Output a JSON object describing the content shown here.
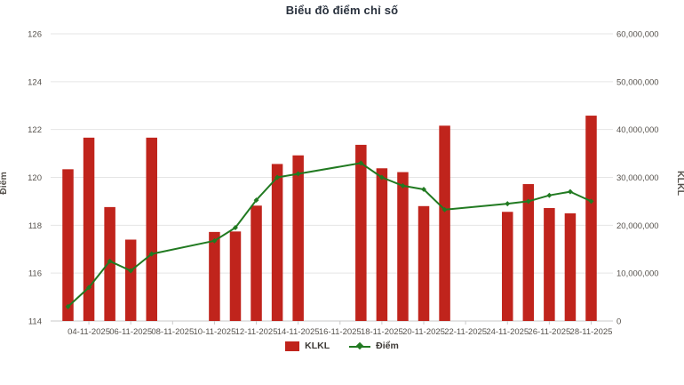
{
  "title": "Biểu đồ điểm chỉ số",
  "colors": {
    "bar": "#c0241c",
    "line": "#217a21",
    "grid": "#e5e5e5",
    "axis_line": "#c9c9c9",
    "tick_text": "#56524d",
    "title_text": "#28303c"
  },
  "left_axis": {
    "label": "Điểm",
    "min": 114,
    "max": 126,
    "step": 2,
    "tick_labels": [
      "114",
      "116",
      "118",
      "120",
      "122",
      "124",
      "126"
    ]
  },
  "right_axis": {
    "label": "KLKL",
    "min": 0,
    "max": 60000000,
    "step": 10000000,
    "tick_labels": [
      "0",
      "10,000,000",
      "20,000,000",
      "30,000,000",
      "40,000,000",
      "50,000,000",
      "60,000,000"
    ]
  },
  "legend": {
    "bar_label": "KLKL",
    "line_label": "Điểm"
  },
  "chart_data": {
    "type": "combo",
    "bar_series_name": "KLKL",
    "line_series_name": "Điểm",
    "x_axis_note": "daily trading sessions Nov 2025, weekend slots empty",
    "x_tick_labels": [
      {
        "label": "04-11-2025",
        "slot": 1
      },
      {
        "label": "06-11-2025",
        "slot": 3
      },
      {
        "label": "08-11-2025",
        "slot": 5
      },
      {
        "label": "10-11-2025",
        "slot": 7
      },
      {
        "label": "12-11-2025",
        "slot": 9
      },
      {
        "label": "14-11-2025",
        "slot": 11
      },
      {
        "label": "16-11-2025",
        "slot": 13
      },
      {
        "label": "18-11-2025",
        "slot": 15
      },
      {
        "label": "20-11-2025",
        "slot": 17
      },
      {
        "label": "22-11-2025",
        "slot": 19
      },
      {
        "label": "24-11-2025",
        "slot": 21
      },
      {
        "label": "26-11-2025",
        "slot": 23
      },
      {
        "label": "28-11-2025",
        "slot": 25
      }
    ],
    "points": [
      {
        "date": "03-11-2025",
        "slot": 0,
        "klkl": 31700000,
        "diem": 114.6
      },
      {
        "date": "04-11-2025",
        "slot": 1,
        "klkl": 38300000,
        "diem": 115.4
      },
      {
        "date": "05-11-2025",
        "slot": 2,
        "klkl": 23800000,
        "diem": 116.5
      },
      {
        "date": "06-11-2025",
        "slot": 3,
        "klkl": 17000000,
        "diem": 116.1
      },
      {
        "date": "07-11-2025",
        "slot": 4,
        "klkl": 38300000,
        "diem": 116.8
      },
      {
        "date": "10-11-2025",
        "slot": 7,
        "klkl": 18600000,
        "diem": 117.35
      },
      {
        "date": "11-11-2025",
        "slot": 8,
        "klkl": 18700000,
        "diem": 117.9
      },
      {
        "date": "12-11-2025",
        "slot": 9,
        "klkl": 24100000,
        "diem": 119.05
      },
      {
        "date": "13-11-2025",
        "slot": 10,
        "klkl": 32800000,
        "diem": 120.0
      },
      {
        "date": "14-11-2025",
        "slot": 11,
        "klkl": 34600000,
        "diem": 120.15
      },
      {
        "date": "17-11-2025",
        "slot": 14,
        "klkl": 36800000,
        "diem": 120.6
      },
      {
        "date": "18-11-2025",
        "slot": 15,
        "klkl": 31900000,
        "diem": 120.0
      },
      {
        "date": "19-11-2025",
        "slot": 16,
        "klkl": 31100000,
        "diem": 119.65
      },
      {
        "date": "20-11-2025",
        "slot": 17,
        "klkl": 24000000,
        "diem": 119.5
      },
      {
        "date": "21-11-2025",
        "slot": 18,
        "klkl": 40800000,
        "diem": 118.65
      },
      {
        "date": "24-11-2025",
        "slot": 21,
        "klkl": 22800000,
        "diem": 118.9
      },
      {
        "date": "25-11-2025",
        "slot": 22,
        "klkl": 28600000,
        "diem": 119.0
      },
      {
        "date": "26-11-2025",
        "slot": 23,
        "klkl": 23600000,
        "diem": 119.25
      },
      {
        "date": "27-11-2025",
        "slot": 24,
        "klkl": 22500000,
        "diem": 119.4
      },
      {
        "date": "28-11-2025",
        "slot": 25,
        "klkl": 42900000,
        "diem": 119.0
      }
    ]
  }
}
